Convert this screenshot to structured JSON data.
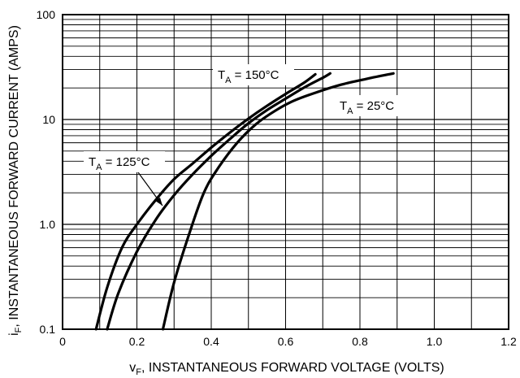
{
  "chart_data": {
    "type": "line",
    "xlabel_main": "v",
    "xlabel_sub": "F",
    "xlabel_rest": ", INSTANTANEOUS FORWARD VOLTAGE (VOLTS)",
    "ylabel_main": "i",
    "ylabel_sub": "F",
    "ylabel_rest": ", INSTANTANEOUS FORWARD CURRENT (AMPS)",
    "xlim": [
      0,
      1.2
    ],
    "ylim": [
      0.1,
      100
    ],
    "yscale": "log",
    "grid": true,
    "x_ticks": [
      {
        "value": 0,
        "label": "0"
      },
      {
        "value": 0.2,
        "label": "0.2"
      },
      {
        "value": 0.4,
        "label": "0.4"
      },
      {
        "value": 0.6,
        "label": "0.6"
      },
      {
        "value": 0.8,
        "label": "0.8"
      },
      {
        "value": 1.0,
        "label": "1.0"
      },
      {
        "value": 1.2,
        "label": "1.2"
      }
    ],
    "y_ticks": [
      {
        "value": 0.1,
        "label": "0.1"
      },
      {
        "value": 1,
        "label": "1.0"
      },
      {
        "value": 10,
        "label": "10"
      },
      {
        "value": 100,
        "label": "100"
      }
    ],
    "series": [
      {
        "name": "T_A = 150°C",
        "label_main": "T",
        "label_sub": "A",
        "label_rest": " = 150°C",
        "x": [
          0.09,
          0.12,
          0.16,
          0.2,
          0.25,
          0.3,
          0.35,
          0.4,
          0.45,
          0.5,
          0.55,
          0.6,
          0.65,
          0.68
        ],
        "y": [
          0.1,
          0.25,
          0.6,
          1.0,
          1.7,
          2.7,
          3.8,
          5.4,
          7.5,
          10.2,
          13.5,
          17.5,
          22.5,
          27
        ]
      },
      {
        "name": "T_A = 125°C",
        "label_main": "T",
        "label_sub": "A",
        "label_rest": " = 125°C",
        "x": [
          0.12,
          0.15,
          0.2,
          0.25,
          0.3,
          0.35,
          0.4,
          0.45,
          0.5,
          0.55,
          0.6,
          0.65,
          0.7,
          0.72
        ],
        "y": [
          0.1,
          0.22,
          0.55,
          1.1,
          1.9,
          3.0,
          4.5,
          6.5,
          9.2,
          12.3,
          15.8,
          20.2,
          25.0,
          27.5
        ]
      },
      {
        "name": "T_A = 25°C",
        "label_main": "T",
        "label_sub": "A",
        "label_rest": " = 25°C",
        "x": [
          0.27,
          0.3,
          0.34,
          0.38,
          0.42,
          0.47,
          0.52,
          0.57,
          0.62,
          0.68,
          0.75,
          0.82,
          0.89
        ],
        "y": [
          0.1,
          0.28,
          0.8,
          2.0,
          3.5,
          6.0,
          9.0,
          12.0,
          15.0,
          18.0,
          21.5,
          24.5,
          27.5
        ]
      }
    ]
  }
}
